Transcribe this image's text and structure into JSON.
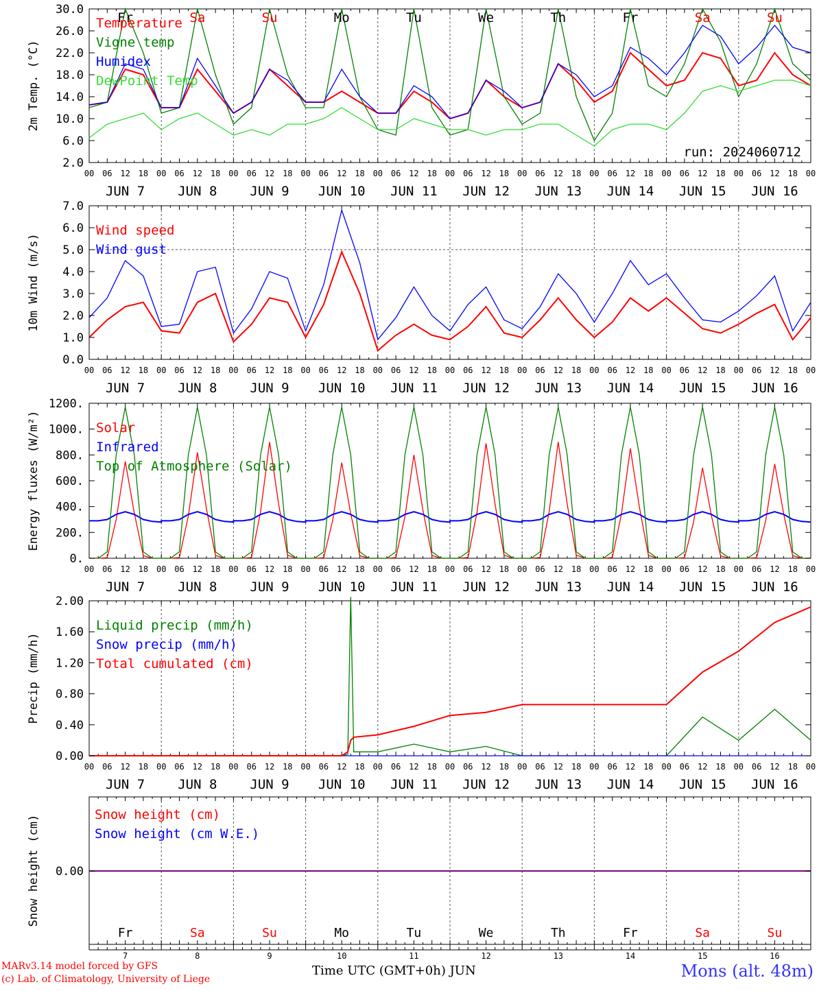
{
  "run_label": "run: 2024060712",
  "footer": {
    "model": "MARv3.14 model forced by GFS",
    "credit": "(c) Lab. of Climatology, University of Liege",
    "axis_title": "Time UTC (GMT+0h) JUN",
    "station": "Mons (alt. 48m)"
  },
  "x_axis": {
    "hour_ticks": [
      "00",
      "06",
      "12",
      "18"
    ],
    "day_labels": [
      "JUN  7",
      "JUN  8",
      "JUN  9",
      "JUN 10",
      "JUN 11",
      "JUN 12",
      "JUN 13",
      "JUN 14",
      "JUN 15",
      "JUN 16"
    ],
    "weekdays": [
      "Fr",
      "Sa",
      "Su",
      "Mo",
      "Tu",
      "We",
      "Th",
      "Fr",
      "Sa",
      "Su"
    ],
    "weekday_colors": [
      "#000000",
      "#ff0000",
      "#ff0000",
      "#000000",
      "#000000",
      "#000000",
      "#000000",
      "#000000",
      "#ff0000",
      "#ff0000"
    ],
    "day_numbers": [
      "7",
      "8",
      "9",
      "10",
      "11",
      "12",
      "13",
      "14",
      "15",
      "16"
    ]
  },
  "chart_data": [
    {
      "type": "line",
      "ylabel": "2m Temp. (°C)",
      "ylim": [
        2,
        30
      ],
      "yticks": [
        "30.0",
        "26.0",
        "22.0",
        "18.0",
        "14.0",
        "10.0",
        "6.0",
        "2.0"
      ],
      "x": [
        0,
        6,
        12,
        18,
        24,
        30,
        36,
        42,
        48,
        54,
        60,
        66,
        72,
        78,
        84,
        90,
        96,
        102,
        108,
        114,
        120,
        126,
        132,
        138,
        144,
        150,
        156,
        162,
        168,
        174,
        180,
        186,
        192,
        198,
        204,
        210,
        216,
        222,
        228,
        234,
        240
      ],
      "series": [
        {
          "name": "Temperature",
          "color": "#ff0000",
          "values": [
            12.5,
            13,
            19,
            18,
            12,
            12,
            19,
            15,
            11,
            13,
            19,
            16,
            13,
            13,
            15,
            13,
            11,
            11,
            15,
            13,
            10,
            11,
            17,
            14,
            12,
            13,
            20,
            17,
            13,
            15,
            22,
            19,
            16,
            17,
            22,
            21,
            16,
            17,
            22,
            18,
            16
          ]
        },
        {
          "name": "Vigne temp",
          "color": "#008000",
          "values": [
            12,
            13,
            30,
            22,
            11,
            12,
            30,
            18,
            9,
            12,
            30,
            18,
            12,
            12,
            30,
            14,
            8,
            7,
            30,
            12,
            7,
            8,
            30,
            14,
            9,
            11,
            30,
            14,
            6,
            11,
            30,
            16,
            14,
            20,
            30,
            24,
            14,
            20,
            30,
            20,
            17
          ]
        },
        {
          "name": "Humidex",
          "color": "#0000ff",
          "values": [
            12.5,
            13,
            20,
            19,
            12,
            12,
            21,
            16,
            11,
            13,
            19,
            17,
            13,
            13,
            19,
            14,
            11,
            11,
            16,
            14,
            10,
            11,
            17,
            15,
            12,
            13,
            20,
            18,
            14,
            16,
            23,
            21,
            18,
            22,
            27,
            25,
            20,
            23,
            27,
            23,
            22
          ]
        },
        {
          "name": "DewPoint Temp",
          "color": "#33dd33",
          "values": [
            6.5,
            9,
            10,
            11,
            8,
            10,
            11,
            9,
            7,
            8,
            7,
            9,
            9,
            10,
            12,
            10,
            8,
            8,
            10,
            9,
            8,
            8,
            7,
            8,
            8,
            9,
            9,
            7,
            5,
            8,
            9,
            9,
            8,
            11,
            15,
            16,
            15,
            16,
            17,
            17,
            16
          ]
        }
      ]
    },
    {
      "type": "line",
      "ylabel": "10m Wind (m/s)",
      "ylim": [
        0,
        7
      ],
      "yticks": [
        "7.0",
        "6.0",
        "5.0",
        "4.0",
        "3.0",
        "2.0",
        "1.0",
        "0.0"
      ],
      "x": [
        0,
        6,
        12,
        18,
        24,
        30,
        36,
        42,
        48,
        54,
        60,
        66,
        72,
        78,
        84,
        90,
        96,
        102,
        108,
        114,
        120,
        126,
        132,
        138,
        144,
        150,
        156,
        162,
        168,
        174,
        180,
        186,
        192,
        198,
        204,
        210,
        216,
        222,
        228,
        234,
        240
      ],
      "series": [
        {
          "name": "Wind speed",
          "color": "#ff0000",
          "values": [
            1.0,
            1.8,
            2.4,
            2.6,
            1.3,
            1.2,
            2.6,
            3.0,
            0.8,
            1.6,
            2.8,
            2.6,
            1.0,
            2.5,
            4.9,
            3.0,
            0.4,
            1.1,
            1.6,
            1.1,
            0.9,
            1.5,
            2.4,
            1.2,
            1.0,
            1.8,
            2.8,
            1.8,
            1.0,
            1.7,
            2.8,
            2.2,
            2.8,
            2.1,
            1.4,
            1.2,
            1.6,
            2.1,
            2.5,
            0.9,
            1.9
          ]
        },
        {
          "name": "Wind gust",
          "color": "#0000ff",
          "values": [
            1.9,
            2.8,
            4.5,
            3.8,
            1.5,
            1.6,
            4.0,
            4.2,
            1.2,
            2.3,
            4.0,
            3.7,
            1.3,
            3.4,
            6.8,
            4.4,
            0.9,
            1.9,
            3.3,
            2.0,
            1.3,
            2.5,
            3.3,
            1.8,
            1.4,
            2.4,
            3.9,
            3.0,
            1.7,
            3.0,
            4.5,
            3.4,
            3.9,
            2.8,
            1.8,
            1.7,
            2.2,
            2.9,
            3.8,
            1.3,
            2.6
          ]
        }
      ]
    },
    {
      "type": "line",
      "ylabel": "Energy fluxes (W/m²)",
      "ylim": [
        0,
        1200
      ],
      "yticks": [
        "1200.",
        "1000.",
        "800.",
        "600.",
        "400.",
        "200.",
        "0."
      ],
      "x": [
        0,
        3,
        6,
        9,
        12,
        15,
        18,
        21,
        24
      ],
      "series": [
        {
          "name": "Solar",
          "color": "#ff0000",
          "values": [
            0,
            0,
            5,
            300,
            750,
            350,
            20,
            0,
            0
          ]
        },
        {
          "name": "Infrared",
          "color": "#0000ff",
          "values": [
            290,
            290,
            300,
            340,
            360,
            340,
            300,
            285,
            280
          ]
        },
        {
          "name": "Top of Atmosphere (Solar)",
          "color": "#008000",
          "values": [
            0,
            0,
            50,
            800,
            1170,
            800,
            50,
            0,
            0
          ]
        }
      ]
    },
    {
      "type": "line",
      "ylabel": "Precip (mm/h)",
      "ylim": [
        0,
        2.0
      ],
      "yticks": [
        "2.00",
        "1.60",
        "1.20",
        "0.80",
        "0.40",
        "0.00"
      ],
      "x": [
        0,
        24,
        48,
        72,
        84,
        86,
        87,
        88,
        96,
        108,
        120,
        132,
        144,
        168,
        192,
        204,
        216,
        228,
        240
      ],
      "series": [
        {
          "name": "Liquid precip (mm/h)",
          "color": "#008000",
          "values": [
            0,
            0,
            0,
            0,
            0,
            0.02,
            2.05,
            0.05,
            0.05,
            0.15,
            0.05,
            0.12,
            0,
            0,
            0,
            0.5,
            0.2,
            0.6,
            0.2
          ]
        },
        {
          "name": "Snow precip (mm/h)",
          "color": "#0000ff",
          "values": [
            0,
            0,
            0,
            0,
            0,
            0,
            0,
            0,
            0,
            0,
            0,
            0,
            0,
            0,
            0,
            0,
            0,
            0,
            0
          ]
        },
        {
          "name": "Total cumulated (cm)",
          "color": "#ff0000",
          "values": [
            0,
            0,
            0,
            0,
            0,
            0.05,
            0.2,
            0.24,
            0.27,
            0.38,
            0.52,
            0.56,
            0.66,
            0.66,
            0.66,
            1.08,
            1.35,
            1.72,
            1.92
          ]
        }
      ]
    },
    {
      "type": "line",
      "ylabel": "Snow height (cm)",
      "yticks": [
        "0.00"
      ],
      "series": [
        {
          "name": "Snow height (cm)",
          "color": "#ff0000",
          "values": [
            0,
            0
          ]
        },
        {
          "name": "Snow height (cm W.E.)",
          "color": "#0000ff",
          "values": [
            0,
            0
          ]
        }
      ]
    }
  ]
}
